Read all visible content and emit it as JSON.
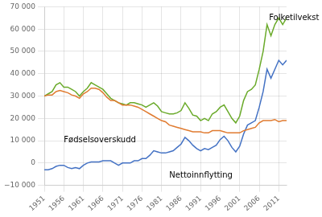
{
  "chart_data": {
    "type": "line",
    "x": [
      1951,
      1952,
      1953,
      1954,
      1955,
      1956,
      1957,
      1958,
      1959,
      1960,
      1961,
      1962,
      1963,
      1964,
      1965,
      1966,
      1967,
      1968,
      1969,
      1970,
      1971,
      1972,
      1973,
      1974,
      1975,
      1976,
      1977,
      1978,
      1979,
      1980,
      1981,
      1982,
      1983,
      1984,
      1985,
      1986,
      1987,
      1988,
      1989,
      1990,
      1991,
      1992,
      1993,
      1994,
      1995,
      1996,
      1997,
      1998,
      1999,
      2000,
      2001,
      2002,
      2003,
      2004,
      2005,
      2006,
      2007,
      2008,
      2009,
      2010,
      2011,
      2012,
      2013
    ],
    "series": [
      {
        "color": "#e07b30",
        "values": [
          30000,
          30500,
          30500,
          32000,
          32500,
          32000,
          31500,
          30500,
          30000,
          29000,
          31000,
          32000,
          33500,
          33500,
          33000,
          31500,
          29500,
          28000,
          28000,
          27000,
          26000,
          26000,
          26000,
          25500,
          25000,
          24000,
          23000,
          22000,
          21000,
          20000,
          19000,
          18500,
          17000,
          16500,
          16000,
          15500,
          15000,
          14500,
          14000,
          14000,
          14000,
          13500,
          13500,
          14500,
          14500,
          14500,
          14000,
          13500,
          13500,
          13500,
          13500,
          14500,
          15000,
          15500,
          16000,
          18000,
          19000,
          19000,
          19000,
          19500,
          18500,
          19000,
          19000
        ]
      },
      {
        "color": "#6aaa2a",
        "values": [
          30000,
          31000,
          32000,
          35000,
          36000,
          34000,
          34000,
          33000,
          32000,
          30000,
          32000,
          33500,
          36000,
          35000,
          34000,
          33000,
          31000,
          29000,
          28000,
          27000,
          26500,
          26000,
          27000,
          27000,
          26500,
          26000,
          25000,
          26000,
          27000,
          25500,
          23000,
          22500,
          22000,
          22000,
          22500,
          23500,
          27000,
          24500,
          21500,
          21000,
          19000,
          20000,
          19000,
          22000,
          23000,
          25000,
          26000,
          23000,
          20000,
          18000,
          21000,
          28000,
          32000,
          33000,
          35000,
          42000,
          50000,
          62000,
          57000,
          62000,
          65000,
          62000,
          65000
        ]
      },
      {
        "color": "#4472c4",
        "values": [
          -3000,
          -3000,
          -2500,
          -1500,
          -1000,
          -1000,
          -2000,
          -2500,
          -2000,
          -2500,
          -1000,
          0,
          500,
          500,
          500,
          1000,
          1000,
          1000,
          0,
          -1000,
          0,
          0,
          0,
          1000,
          1000,
          2000,
          2000,
          3500,
          5500,
          5000,
          4500,
          4500,
          5000,
          5500,
          7000,
          8500,
          11500,
          10000,
          8000,
          6500,
          5500,
          6500,
          6000,
          7000,
          8000,
          10500,
          12000,
          10000,
          7000,
          5000,
          7500,
          13000,
          17000,
          18000,
          19000,
          25000,
          32000,
          42000,
          38000,
          42000,
          46000,
          44000,
          46000
        ]
      }
    ],
    "xlim": [
      1951,
      2013
    ],
    "xticks": [
      1951,
      1956,
      1961,
      1966,
      1971,
      1976,
      1981,
      1986,
      1991,
      1996,
      2001,
      2006,
      2011
    ],
    "ylim": [
      -10000,
      70000
    ],
    "yticks": [
      {
        "value": -10000,
        "label": "−10 000"
      },
      0,
      {
        "value": 10000,
        "label": "10 000"
      },
      {
        "value": 20000,
        "label": "20 000"
      },
      {
        "value": 30000,
        "label": "30 000"
      },
      {
        "value": 40000,
        "label": "40 000"
      },
      {
        "value": 50000,
        "label": "50 000"
      },
      {
        "value": 60000,
        "label": "60 000"
      },
      {
        "value": 70000,
        "label": "70 000"
      }
    ],
    "grid": true,
    "annotations": [
      {
        "text": "Folketilvekst",
        "x": 2008.5,
        "y": 63000
      },
      {
        "text": "Fødselsoverskudd",
        "x": 1956,
        "y": 8500
      },
      {
        "text": "Nettoinnflytting",
        "x": 1983,
        "y": -7500
      }
    ]
  }
}
